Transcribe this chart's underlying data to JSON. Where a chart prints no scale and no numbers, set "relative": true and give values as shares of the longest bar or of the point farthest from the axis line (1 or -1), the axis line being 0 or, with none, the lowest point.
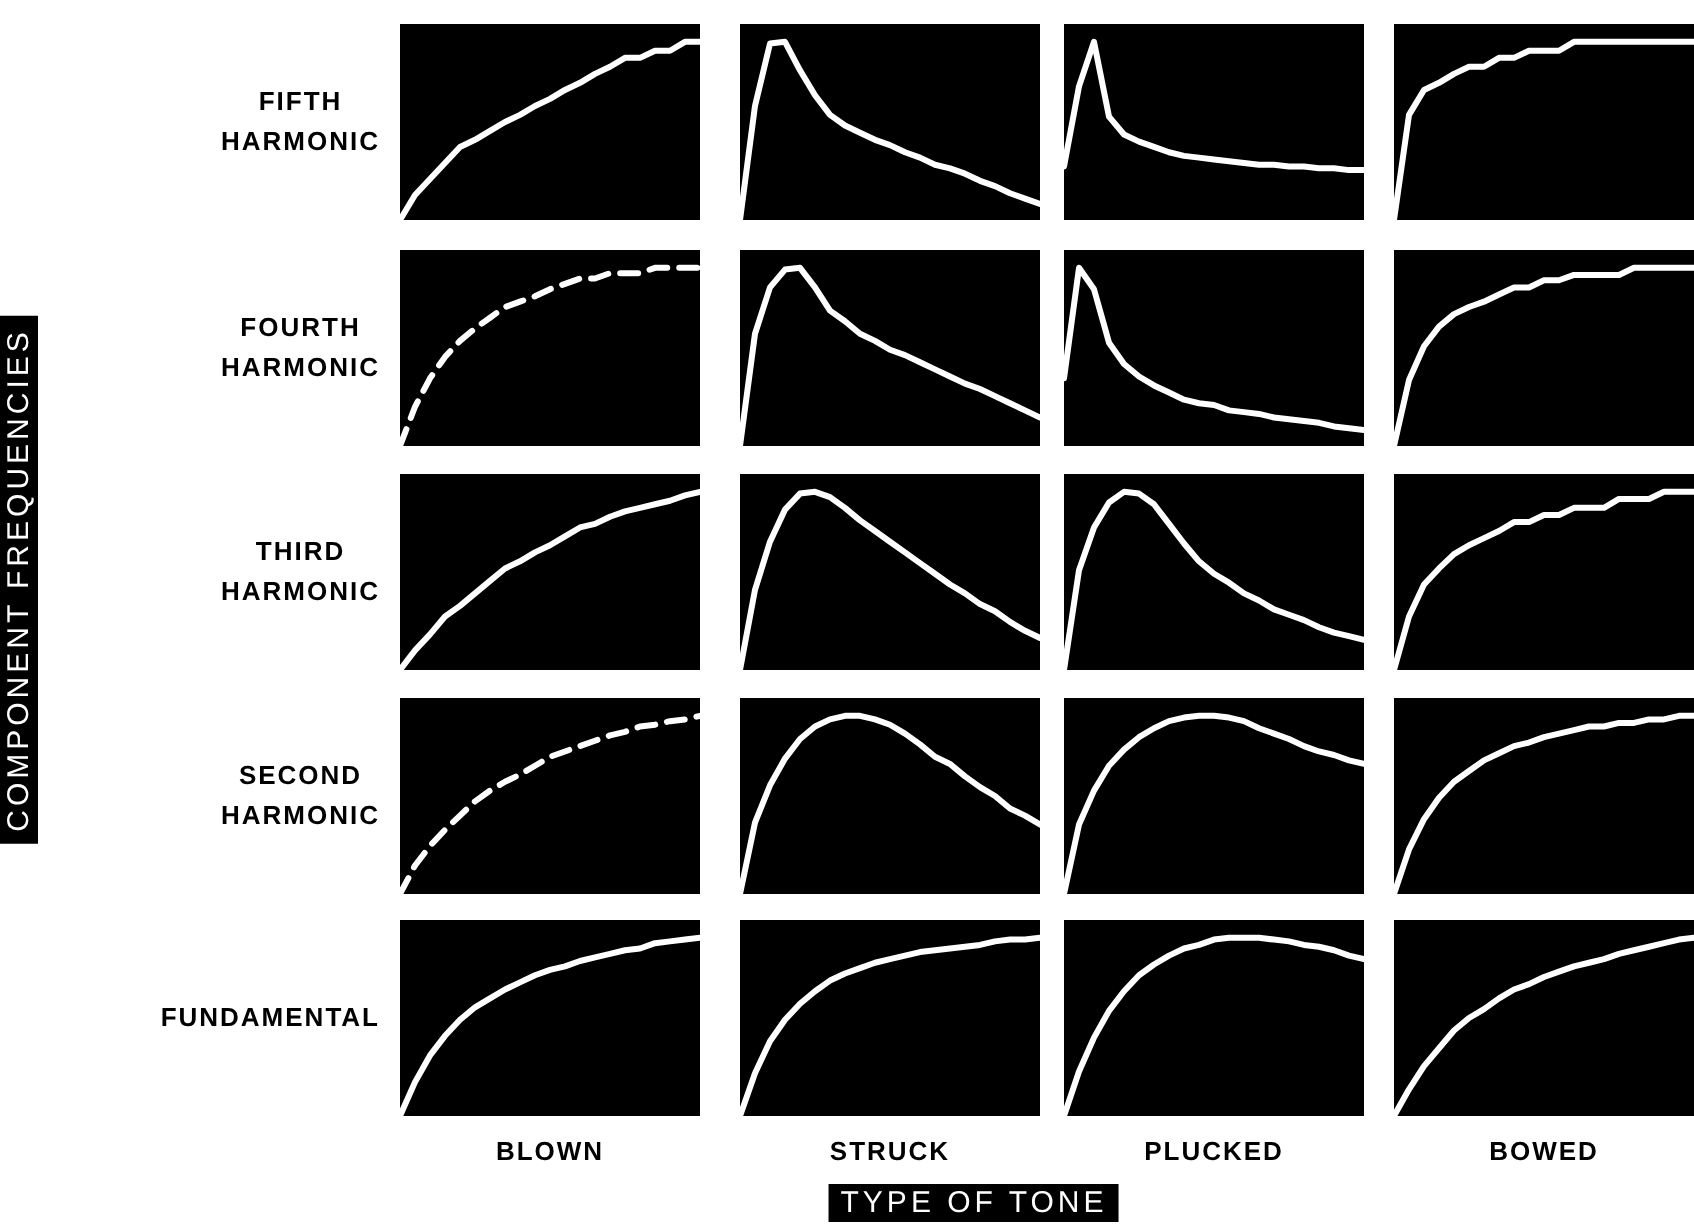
{
  "chart_data": [
    {
      "type": "line",
      "relative": true,
      "ylabel": "FIFTH HARMONIC",
      "color": "#ffffff",
      "categories": [
        null,
        null,
        null,
        null,
        null,
        null,
        null,
        null,
        null,
        null,
        null,
        null,
        null,
        null,
        null,
        null,
        null,
        null,
        null,
        null,
        null
      ],
      "values": [
        0,
        0.14,
        0.23,
        0.32,
        0.41,
        0.45,
        0.5,
        0.55,
        0.59,
        0.64,
        0.68,
        0.73,
        0.77,
        0.82,
        0.86,
        0.91,
        0.91,
        0.95,
        0.95,
        1,
        1
      ]
    },
    {
      "type": "line",
      "relative": true,
      "color": "#ffffff",
      "categories": [
        null,
        null,
        null,
        null,
        null,
        null,
        null,
        null,
        null,
        null,
        null,
        null,
        null,
        null,
        null,
        null,
        null,
        null,
        null,
        null,
        null
      ],
      "values": [
        0,
        0.64,
        0.99,
        1,
        0.84,
        0.7,
        0.59,
        0.53,
        0.49,
        0.45,
        0.42,
        0.38,
        0.35,
        0.31,
        0.29,
        0.26,
        0.22,
        0.19,
        0.15,
        0.12,
        0.09
      ]
    },
    {
      "type": "line",
      "relative": true,
      "color": "#ffffff",
      "categories": [
        null,
        null,
        null,
        null,
        null,
        null,
        null,
        null,
        null,
        null,
        null,
        null,
        null,
        null,
        null,
        null,
        null,
        null,
        null,
        null,
        null
      ],
      "values": [
        0.3,
        0.75,
        1,
        0.58,
        0.48,
        0.44,
        0.41,
        0.38,
        0.36,
        0.35,
        0.34,
        0.33,
        0.32,
        0.31,
        0.31,
        0.3,
        0.3,
        0.29,
        0.29,
        0.28,
        0.28
      ]
    },
    {
      "type": "line",
      "relative": true,
      "color": "#ffffff",
      "categories": [
        null,
        null,
        null,
        null,
        null,
        null,
        null,
        null,
        null,
        null,
        null,
        null,
        null,
        null,
        null,
        null,
        null,
        null,
        null,
        null,
        null
      ],
      "values": [
        0,
        0.59,
        0.73,
        0.77,
        0.82,
        0.86,
        0.86,
        0.91,
        0.91,
        0.95,
        0.95,
        0.95,
        1,
        1,
        1,
        1,
        1,
        1,
        1,
        1,
        1
      ]
    },
    {
      "type": "line",
      "relative": true,
      "ylabel": "FOURTH HARMONIC",
      "line_style": "dashed",
      "color": "#ffffff",
      "categories": [
        null,
        null,
        null,
        null,
        null,
        null,
        null,
        null,
        null,
        null,
        null,
        null,
        null,
        null,
        null,
        null,
        null,
        null,
        null,
        null,
        null
      ],
      "values": [
        0,
        0.22,
        0.38,
        0.5,
        0.59,
        0.66,
        0.72,
        0.78,
        0.81,
        0.84,
        0.88,
        0.91,
        0.94,
        0.94,
        0.97,
        0.97,
        0.97,
        1,
        1,
        1,
        1
      ]
    },
    {
      "type": "line",
      "relative": true,
      "color": "#ffffff",
      "categories": [
        null,
        null,
        null,
        null,
        null,
        null,
        null,
        null,
        null,
        null,
        null,
        null,
        null,
        null,
        null,
        null,
        null,
        null,
        null,
        null,
        null
      ],
      "values": [
        0,
        0.63,
        0.89,
        0.99,
        1,
        0.89,
        0.76,
        0.7,
        0.63,
        0.59,
        0.54,
        0.51,
        0.47,
        0.43,
        0.39,
        0.35,
        0.32,
        0.28,
        0.24,
        0.2,
        0.16
      ]
    },
    {
      "type": "line",
      "relative": true,
      "color": "#ffffff",
      "categories": [
        null,
        null,
        null,
        null,
        null,
        null,
        null,
        null,
        null,
        null,
        null,
        null,
        null,
        null,
        null,
        null,
        null,
        null,
        null,
        null,
        null
      ],
      "values": [
        0.38,
        1,
        0.88,
        0.58,
        0.46,
        0.39,
        0.34,
        0.3,
        0.26,
        0.24,
        0.23,
        0.2,
        0.19,
        0.18,
        0.16,
        0.15,
        0.14,
        0.13,
        0.11,
        0.1,
        0.09
      ]
    },
    {
      "type": "line",
      "relative": true,
      "color": "#ffffff",
      "categories": [
        null,
        null,
        null,
        null,
        null,
        null,
        null,
        null,
        null,
        null,
        null,
        null,
        null,
        null,
        null,
        null,
        null,
        null,
        null,
        null,
        null
      ],
      "values": [
        0,
        0.37,
        0.56,
        0.67,
        0.74,
        0.78,
        0.81,
        0.85,
        0.89,
        0.89,
        0.93,
        0.93,
        0.96,
        0.96,
        0.96,
        0.96,
        1,
        1,
        1,
        1,
        1
      ]
    },
    {
      "type": "line",
      "relative": true,
      "ylabel": "THIRD HARMONIC",
      "color": "#ffffff",
      "categories": [
        null,
        null,
        null,
        null,
        null,
        null,
        null,
        null,
        null,
        null,
        null,
        null,
        null,
        null,
        null,
        null,
        null,
        null,
        null,
        null,
        null
      ],
      "values": [
        0,
        0.11,
        0.2,
        0.3,
        0.36,
        0.43,
        0.5,
        0.57,
        0.61,
        0.66,
        0.7,
        0.75,
        0.8,
        0.82,
        0.86,
        0.89,
        0.91,
        0.93,
        0.95,
        0.98,
        1
      ]
    },
    {
      "type": "line",
      "relative": true,
      "color": "#ffffff",
      "categories": [
        null,
        null,
        null,
        null,
        null,
        null,
        null,
        null,
        null,
        null,
        null,
        null,
        null,
        null,
        null,
        null,
        null,
        null,
        null,
        null,
        null
      ],
      "values": [
        0,
        0.45,
        0.72,
        0.9,
        0.99,
        1,
        0.97,
        0.91,
        0.84,
        0.78,
        0.72,
        0.66,
        0.6,
        0.54,
        0.48,
        0.43,
        0.37,
        0.33,
        0.27,
        0.22,
        0.18
      ]
    },
    {
      "type": "line",
      "relative": true,
      "color": "#ffffff",
      "categories": [
        null,
        null,
        null,
        null,
        null,
        null,
        null,
        null,
        null,
        null,
        null,
        null,
        null,
        null,
        null,
        null,
        null,
        null,
        null,
        null,
        null
      ],
      "values": [
        0,
        0.56,
        0.8,
        0.94,
        1,
        0.99,
        0.93,
        0.82,
        0.71,
        0.61,
        0.54,
        0.49,
        0.43,
        0.39,
        0.34,
        0.31,
        0.28,
        0.24,
        0.21,
        0.19,
        0.17
      ]
    },
    {
      "type": "line",
      "relative": true,
      "color": "#ffffff",
      "categories": [
        null,
        null,
        null,
        null,
        null,
        null,
        null,
        null,
        null,
        null,
        null,
        null,
        null,
        null,
        null,
        null,
        null,
        null,
        null,
        null,
        null
      ],
      "values": [
        0,
        0.3,
        0.48,
        0.57,
        0.65,
        0.7,
        0.74,
        0.78,
        0.83,
        0.83,
        0.87,
        0.87,
        0.91,
        0.91,
        0.91,
        0.96,
        0.96,
        0.96,
        1,
        1,
        1
      ]
    },
    {
      "type": "line",
      "relative": true,
      "ylabel": "SECOND HARMONIC",
      "line_style": "dashed",
      "color": "#ffffff",
      "categories": [
        null,
        null,
        null,
        null,
        null,
        null,
        null,
        null,
        null,
        null,
        null,
        null,
        null,
        null,
        null,
        null,
        null,
        null,
        null,
        null,
        null
      ],
      "values": [
        0,
        0.16,
        0.27,
        0.36,
        0.44,
        0.52,
        0.58,
        0.63,
        0.67,
        0.72,
        0.77,
        0.8,
        0.83,
        0.86,
        0.89,
        0.91,
        0.94,
        0.95,
        0.97,
        0.98,
        1
      ]
    },
    {
      "type": "line",
      "relative": true,
      "color": "#ffffff",
      "categories": [
        null,
        null,
        null,
        null,
        null,
        null,
        null,
        null,
        null,
        null,
        null,
        null,
        null,
        null,
        null,
        null,
        null,
        null,
        null,
        null,
        null
      ],
      "values": [
        0,
        0.4,
        0.61,
        0.76,
        0.87,
        0.94,
        0.98,
        1,
        1,
        0.98,
        0.95,
        0.9,
        0.84,
        0.77,
        0.73,
        0.66,
        0.6,
        0.55,
        0.48,
        0.44,
        0.39
      ]
    },
    {
      "type": "line",
      "relative": true,
      "color": "#ffffff",
      "categories": [
        null,
        null,
        null,
        null,
        null,
        null,
        null,
        null,
        null,
        null,
        null,
        null,
        null,
        null,
        null,
        null,
        null,
        null,
        null,
        null,
        null
      ],
      "values": [
        0,
        0.39,
        0.58,
        0.72,
        0.81,
        0.88,
        0.93,
        0.97,
        0.99,
        1,
        1,
        0.99,
        0.97,
        0.93,
        0.9,
        0.87,
        0.83,
        0.8,
        0.78,
        0.75,
        0.73
      ]
    },
    {
      "type": "line",
      "relative": true,
      "color": "#ffffff",
      "categories": [
        null,
        null,
        null,
        null,
        null,
        null,
        null,
        null,
        null,
        null,
        null,
        null,
        null,
        null,
        null,
        null,
        null,
        null,
        null,
        null,
        null
      ],
      "values": [
        0,
        0.25,
        0.42,
        0.54,
        0.63,
        0.69,
        0.75,
        0.79,
        0.83,
        0.85,
        0.88,
        0.9,
        0.92,
        0.94,
        0.94,
        0.96,
        0.96,
        0.98,
        0.98,
        1,
        1
      ]
    },
    {
      "type": "line",
      "relative": true,
      "ylabel": "FUNDAMENTAL",
      "xlabel": "BLOWN",
      "color": "#ffffff",
      "categories": [
        null,
        null,
        null,
        null,
        null,
        null,
        null,
        null,
        null,
        null,
        null,
        null,
        null,
        null,
        null,
        null,
        null,
        null,
        null,
        null,
        null
      ],
      "values": [
        0,
        0.19,
        0.34,
        0.45,
        0.54,
        0.61,
        0.66,
        0.71,
        0.75,
        0.79,
        0.82,
        0.84,
        0.87,
        0.89,
        0.91,
        0.93,
        0.94,
        0.97,
        0.98,
        0.99,
        1
      ]
    },
    {
      "type": "line",
      "relative": true,
      "xlabel": "STRUCK",
      "color": "#ffffff",
      "categories": [
        null,
        null,
        null,
        null,
        null,
        null,
        null,
        null,
        null,
        null,
        null,
        null,
        null,
        null,
        null,
        null,
        null,
        null,
        null,
        null,
        null
      ],
      "values": [
        0,
        0.24,
        0.42,
        0.54,
        0.63,
        0.7,
        0.76,
        0.8,
        0.83,
        0.86,
        0.88,
        0.9,
        0.92,
        0.93,
        0.94,
        0.95,
        0.96,
        0.98,
        0.99,
        0.99,
        1
      ]
    },
    {
      "type": "line",
      "relative": true,
      "xlabel": "PLUCKED",
      "color": "#ffffff",
      "categories": [
        null,
        null,
        null,
        null,
        null,
        null,
        null,
        null,
        null,
        null,
        null,
        null,
        null,
        null,
        null,
        null,
        null,
        null,
        null,
        null,
        null
      ],
      "values": [
        0,
        0.25,
        0.44,
        0.59,
        0.7,
        0.79,
        0.85,
        0.9,
        0.94,
        0.96,
        0.99,
        1,
        1,
        1,
        0.99,
        0.98,
        0.96,
        0.95,
        0.93,
        0.9,
        0.88
      ]
    },
    {
      "type": "line",
      "relative": true,
      "xlabel": "BOWED",
      "color": "#ffffff",
      "categories": [
        null,
        null,
        null,
        null,
        null,
        null,
        null,
        null,
        null,
        null,
        null,
        null,
        null,
        null,
        null,
        null,
        null,
        null,
        null,
        null,
        null
      ],
      "values": [
        0,
        0.15,
        0.28,
        0.38,
        0.48,
        0.55,
        0.6,
        0.66,
        0.71,
        0.74,
        0.78,
        0.81,
        0.84,
        0.86,
        0.88,
        0.91,
        0.93,
        0.95,
        0.97,
        0.99,
        1
      ]
    },
    {
      "type": "other",
      "annotations": [
        "COMPONENT FREQUENCIES",
        "TYPE OF TONE"
      ]
    }
  ]
}
